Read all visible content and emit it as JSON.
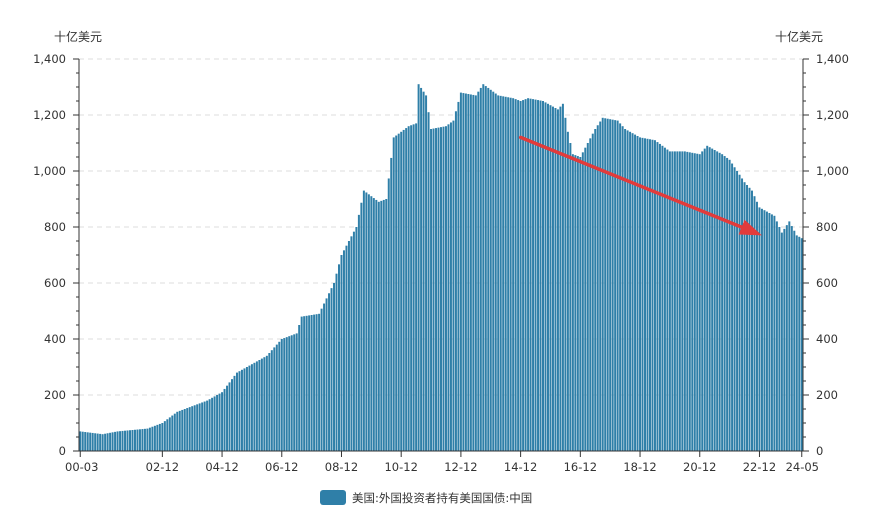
{
  "chart_data": {
    "type": "bar",
    "y_unit_left": "十亿美元",
    "y_unit_right": "十亿美元",
    "ylim": [
      0,
      1400
    ],
    "y_ticks": [
      "0",
      "200",
      "400",
      "600",
      "800",
      "1,000",
      "1,200",
      "1,400"
    ],
    "x_tick_labels": [
      "00-03",
      "02-12",
      "04-12",
      "06-12",
      "08-12",
      "10-12",
      "12-12",
      "14-12",
      "16-12",
      "18-12",
      "20-12",
      "22-12",
      "24-05"
    ],
    "x_tick_months": [
      "2000-03",
      "2002-12",
      "2004-12",
      "2006-12",
      "2008-12",
      "2010-12",
      "2012-12",
      "2014-12",
      "2016-12",
      "2018-12",
      "2020-12",
      "2022-12",
      "2024-05"
    ],
    "x_range": [
      "2000-03",
      "2024-05"
    ],
    "grid": true,
    "legend_position": "bottom",
    "bar_color": "#2f7fa8",
    "arrow_color": "#e23b3b",
    "arrow": {
      "from": {
        "x": "2014-12",
        "y": 1120
      },
      "to": {
        "x": "2023-01",
        "y": 770
      }
    },
    "series": [
      {
        "name": "美国:外国投资者持有美国国债:中国",
        "anchors": [
          [
            "2000-03",
            70
          ],
          [
            "2000-12",
            60
          ],
          [
            "2001-06",
            70
          ],
          [
            "2002-06",
            80
          ],
          [
            "2002-12",
            100
          ],
          [
            "2003-06",
            140
          ],
          [
            "2003-12",
            160
          ],
          [
            "2004-06",
            180
          ],
          [
            "2004-12",
            210
          ],
          [
            "2005-06",
            280
          ],
          [
            "2005-12",
            310
          ],
          [
            "2006-06",
            340
          ],
          [
            "2006-12",
            400
          ],
          [
            "2007-06",
            420
          ],
          [
            "2007-08",
            480
          ],
          [
            "2008-03",
            490
          ],
          [
            "2008-09",
            600
          ],
          [
            "2008-12",
            700
          ],
          [
            "2009-06",
            800
          ],
          [
            "2009-09",
            930
          ],
          [
            "2010-03",
            890
          ],
          [
            "2010-06",
            900
          ],
          [
            "2010-09",
            1120
          ],
          [
            "2011-03",
            1160
          ],
          [
            "2011-06",
            1170
          ],
          [
            "2011-07",
            1310
          ],
          [
            "2011-10",
            1270
          ],
          [
            "2011-12",
            1150
          ],
          [
            "2012-06",
            1160
          ],
          [
            "2012-09",
            1180
          ],
          [
            "2012-12",
            1280
          ],
          [
            "2013-06",
            1270
          ],
          [
            "2013-09",
            1310
          ],
          [
            "2014-03",
            1270
          ],
          [
            "2014-09",
            1260
          ],
          [
            "2014-12",
            1250
          ],
          [
            "2015-03",
            1260
          ],
          [
            "2015-09",
            1250
          ],
          [
            "2016-03",
            1220
          ],
          [
            "2016-05",
            1240
          ],
          [
            "2016-07",
            1140
          ],
          [
            "2016-09",
            1060
          ],
          [
            "2016-12",
            1050
          ],
          [
            "2017-06",
            1150
          ],
          [
            "2017-09",
            1190
          ],
          [
            "2018-03",
            1180
          ],
          [
            "2018-06",
            1150
          ],
          [
            "2018-12",
            1120
          ],
          [
            "2019-06",
            1110
          ],
          [
            "2019-12",
            1070
          ],
          [
            "2020-06",
            1070
          ],
          [
            "2020-12",
            1060
          ],
          [
            "2021-03",
            1090
          ],
          [
            "2021-09",
            1060
          ],
          [
            "2021-12",
            1040
          ],
          [
            "2022-03",
            1000
          ],
          [
            "2022-06",
            960
          ],
          [
            "2022-09",
            930
          ],
          [
            "2022-12",
            870
          ],
          [
            "2023-06",
            840
          ],
          [
            "2023-09",
            780
          ],
          [
            "2023-12",
            820
          ],
          [
            "2024-03",
            770
          ],
          [
            "2024-05",
            760
          ]
        ]
      }
    ]
  }
}
